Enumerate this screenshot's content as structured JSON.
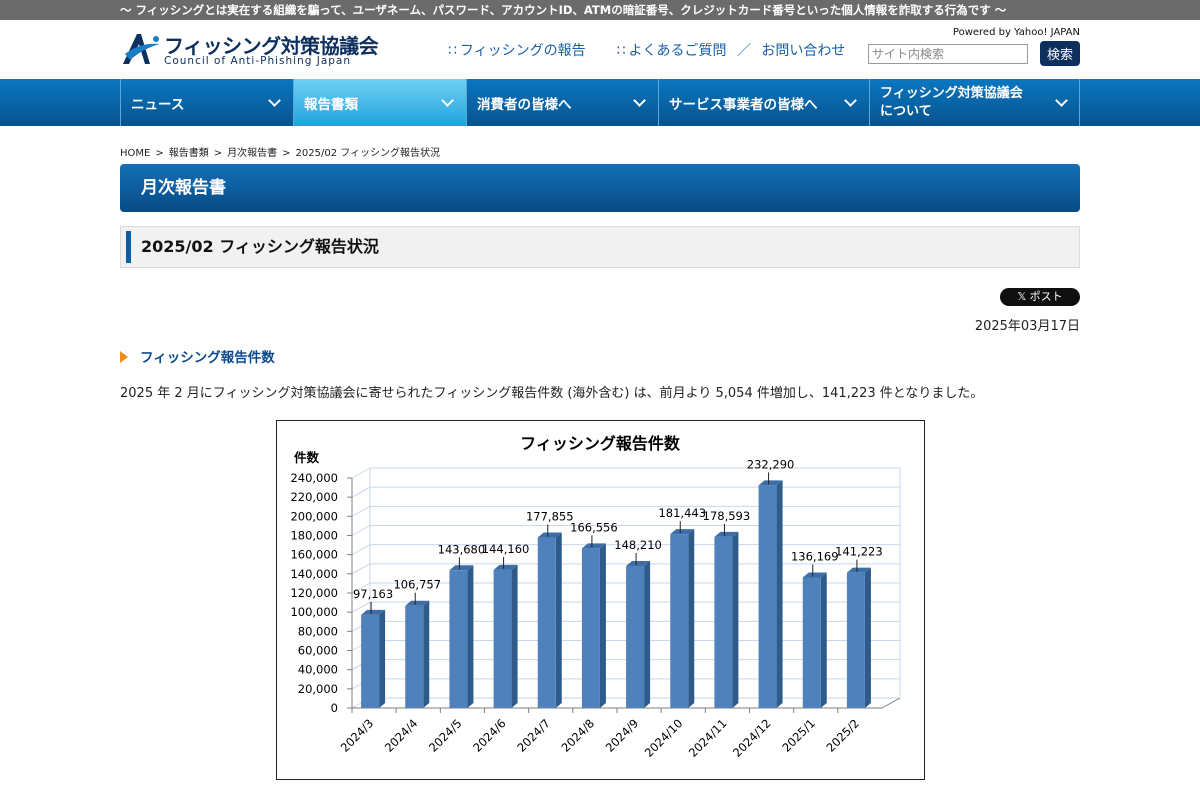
{
  "topbar": {
    "text": "〜 フィッシングとは実在する組織を騙って、ユーザネーム、パスワード、アカウントID、ATMの暗証番号、クレジットカード番号といった個人情報を詐取する行為です 〜"
  },
  "logo": {
    "name_ja": "フィッシング対策協議会",
    "name_en": "Council of Anti-Phishing Japan"
  },
  "header_links": {
    "report": "フィッシングの報告",
    "faq": "よくあるご質問",
    "separator": "／",
    "contact": "お問い合わせ"
  },
  "search": {
    "powered_by": "Powered by Yahoo! JAPAN",
    "placeholder": "サイト内検索",
    "button": "検索"
  },
  "nav": {
    "items": [
      {
        "label": "ニュース"
      },
      {
        "label": "報告書類"
      },
      {
        "label": "消費者の皆様へ"
      },
      {
        "label": "サービス事業者の皆様へ"
      },
      {
        "label_line1": "フィッシング対策協議会",
        "label_line2": "について"
      }
    ]
  },
  "breadcrumb": {
    "home": "HOME",
    "sep": ">",
    "level1": "報告書類",
    "level2": "月次報告書",
    "current": "2025/02 フィッシング報告状況"
  },
  "section_title": "月次報告書",
  "page_title": "2025/02 フィッシング報告状況",
  "share": {
    "x_post": "𝕏 ポスト"
  },
  "date": "2025年03月17日",
  "subheading": "フィッシング報告件数",
  "paragraph": "2025 年 2 月にフィッシング対策協議会に寄せられたフィッシング報告件数 (海外含む) は、前月より 5,054 件増加し、141,223 件となりました。",
  "chart_data": {
    "type": "bar",
    "title": "フィッシング報告件数",
    "ylabel": "件数",
    "xlabel": "",
    "categories": [
      "2024/3",
      "2024/4",
      "2024/5",
      "2024/6",
      "2024/7",
      "2024/8",
      "2024/9",
      "2024/10",
      "2024/11",
      "2024/12",
      "2025/1",
      "2025/2"
    ],
    "values": [
      97163,
      106757,
      143680,
      144160,
      177855,
      166556,
      148210,
      181443,
      178593,
      232290,
      136169,
      141223
    ],
    "data_labels": [
      "97,163",
      "106,757",
      "143,680",
      "144,160",
      "177,855",
      "166,556",
      "148,210",
      "181,443",
      "178,593",
      "232,290",
      "136,169",
      "141,223"
    ],
    "ylim": [
      0,
      240000
    ],
    "yticks": [
      "0",
      "20,000",
      "40,000",
      "60,000",
      "80,000",
      "100,000",
      "120,000",
      "140,000",
      "160,000",
      "180,000",
      "200,000",
      "220,000",
      "240,000"
    ],
    "grid": true,
    "legend": "none",
    "bar_color": "#4f81bd"
  }
}
